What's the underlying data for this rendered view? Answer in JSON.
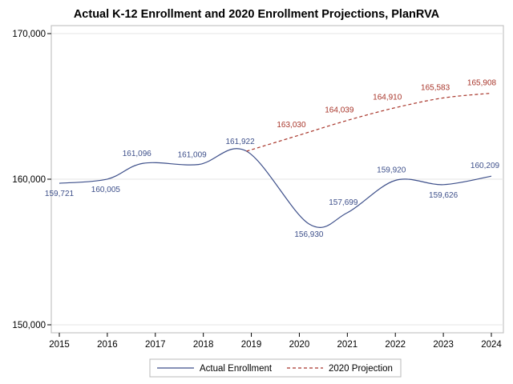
{
  "chart_data": {
    "type": "line",
    "title": "Actual K-12 Enrollment and 2020 Enrollment Projections, PlanRVA",
    "xlabel": "",
    "ylabel": "",
    "x": [
      2015,
      2016,
      2017,
      2018,
      2019,
      2020,
      2021,
      2022,
      2023,
      2024
    ],
    "xlim": [
      2015,
      2024
    ],
    "ylim": [
      150000,
      170000
    ],
    "y_ticks": [
      150000,
      160000,
      170000
    ],
    "y_tick_labels": [
      "150,000",
      "160,000",
      "170,000"
    ],
    "grid": "horizontal",
    "legend_position": "bottom",
    "series": [
      {
        "name": "Actual Enrollment",
        "color": "#3d4f8a",
        "style": "solid",
        "smooth": true,
        "points": [
          {
            "x": 2015,
            "y": 159721,
            "label": "159,721"
          },
          {
            "x": 2016,
            "y": 160005,
            "label": "160,005"
          },
          {
            "x": 2016.75,
            "y": 161096,
            "label": "161,096"
          },
          {
            "x": 2017.9,
            "y": 161009,
            "label": "161,009"
          },
          {
            "x": 2018.9,
            "y": 161922,
            "label": "161,922"
          },
          {
            "x": 2020.2,
            "y": 156930,
            "label": "156,930"
          },
          {
            "x": 2021,
            "y": 157699,
            "label": "157,699"
          },
          {
            "x": 2022,
            "y": 159920,
            "label": "159,920"
          },
          {
            "x": 2023,
            "y": 159626,
            "label": "159,626"
          },
          {
            "x": 2024,
            "y": 160209,
            "label": "160,209"
          }
        ]
      },
      {
        "name": "2020 Projection",
        "color": "#a8352a",
        "style": "dashed",
        "smooth": true,
        "points": [
          {
            "x": 2018.9,
            "y": 161922,
            "label": ""
          },
          {
            "x": 2020,
            "y": 163030,
            "label": "163,030"
          },
          {
            "x": 2021,
            "y": 164039,
            "label": "164,039"
          },
          {
            "x": 2022,
            "y": 164910,
            "label": "164,910"
          },
          {
            "x": 2023,
            "y": 165583,
            "label": "165,583"
          },
          {
            "x": 2024,
            "y": 165908,
            "label": "165,908"
          }
        ]
      }
    ]
  }
}
